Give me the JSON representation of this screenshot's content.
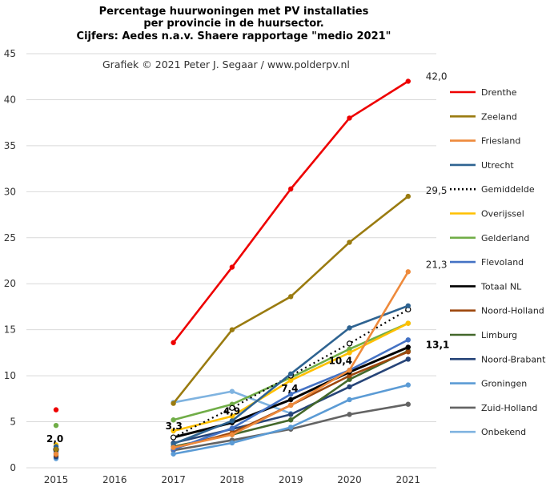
{
  "chart_data": {
    "type": "line",
    "title_lines": [
      "Percentage huurwoningen met PV installaties",
      "per provincie in de huursector.",
      "Cijfers: Aedes n.a.v. Shaere rapportage \"medio 2021\""
    ],
    "credit": "Grafiek  © 2021  Peter J. Segaar / www.polderpv.nl",
    "x": [
      "2015",
      "2016",
      "2017",
      "2018",
      "2019",
      "2020",
      "2021"
    ],
    "ylim": [
      0,
      45
    ],
    "yticks": [
      0,
      5,
      10,
      15,
      20,
      25,
      30,
      35,
      40,
      45
    ],
    "grid": "horizontal",
    "legend_position": "right",
    "series": [
      {
        "name": "Drenthe",
        "color": "#ee0000",
        "values": [
          6.3,
          null,
          13.6,
          21.8,
          30.3,
          38.0,
          42.0
        ]
      },
      {
        "name": "Zeeland",
        "color": "#9a7b10",
        "values": [
          2.0,
          null,
          7.0,
          15.0,
          18.6,
          24.5,
          29.5
        ]
      },
      {
        "name": "Friesland",
        "color": "#ee8a3c",
        "values": [
          1.5,
          null,
          2.2,
          3.6,
          6.8,
          10.6,
          21.3
        ]
      },
      {
        "name": "Utrecht",
        "color": "#2e6391",
        "values": [
          2.3,
          null,
          2.6,
          5.1,
          10.2,
          15.2,
          17.6
        ]
      },
      {
        "name": "Gemiddelde",
        "color": "#000000",
        "dashed": true,
        "values": [
          2.0,
          null,
          3.3,
          6.5,
          10.0,
          13.5,
          17.2
        ]
      },
      {
        "name": "Overijssel",
        "color": "#ffc000",
        "values": [
          2.5,
          null,
          4.0,
          5.6,
          9.5,
          12.5,
          15.7
        ]
      },
      {
        "name": "Gelderland",
        "color": "#70ad47",
        "values": [
          4.6,
          null,
          5.2,
          6.9,
          9.8,
          12.9,
          15.7
        ]
      },
      {
        "name": "Flevoland",
        "color": "#4472c4",
        "values": [
          1.8,
          null,
          2.0,
          4.3,
          8.0,
          10.6,
          13.9
        ]
      },
      {
        "name": "Totaal NL",
        "color": "#000000",
        "thick": true,
        "values": [
          2.0,
          null,
          3.3,
          4.9,
          7.4,
          10.4,
          13.1
        ]
      },
      {
        "name": "Noord-Holland",
        "color": "#9e480e",
        "values": [
          1.4,
          null,
          2.1,
          3.8,
          6.8,
          10.0,
          12.6
        ]
      },
      {
        "name": "Limburg",
        "color": "#43682b",
        "values": [
          2.1,
          null,
          2.3,
          3.6,
          5.2,
          9.6,
          12.7
        ]
      },
      {
        "name": "Noord-Brabant",
        "color": "#264478",
        "values": [
          1.2,
          null,
          2.7,
          4.2,
          5.8,
          8.8,
          11.8
        ]
      },
      {
        "name": "Groningen",
        "color": "#5b9bd5",
        "values": [
          1.0,
          null,
          1.5,
          2.7,
          4.4,
          7.4,
          9.0
        ]
      },
      {
        "name": "Zuid-Holland",
        "color": "#636363",
        "values": [
          1.6,
          null,
          1.9,
          3.0,
          4.2,
          5.8,
          6.9
        ]
      },
      {
        "name": "Onbekend",
        "color": "#7fb3e0",
        "values": [
          null,
          null,
          7.1,
          8.3,
          5.9,
          null,
          null
        ]
      }
    ],
    "data_labels": [
      {
        "text": "42,0",
        "x": "2021",
        "y": 42.0,
        "bold": false
      },
      {
        "text": "29,5",
        "x": "2021",
        "y": 29.5,
        "bold": false
      },
      {
        "text": "21,3",
        "x": "2021",
        "y": 21.3,
        "bold": false
      },
      {
        "text": "13,1",
        "x": "2021",
        "y": 13.1,
        "bold": true
      },
      {
        "text": "10,4",
        "x": "2020",
        "y": 10.4,
        "bold": true
      },
      {
        "text": "7,4",
        "x": "2019",
        "y": 7.4,
        "bold": true
      },
      {
        "text": "4,9",
        "x": "2018",
        "y": 4.9,
        "bold": true
      },
      {
        "text": "3,3",
        "x": "2017",
        "y": 3.3,
        "bold": true
      },
      {
        "text": "2,0",
        "x": "2015",
        "y": 2.0,
        "bold": true
      }
    ]
  }
}
